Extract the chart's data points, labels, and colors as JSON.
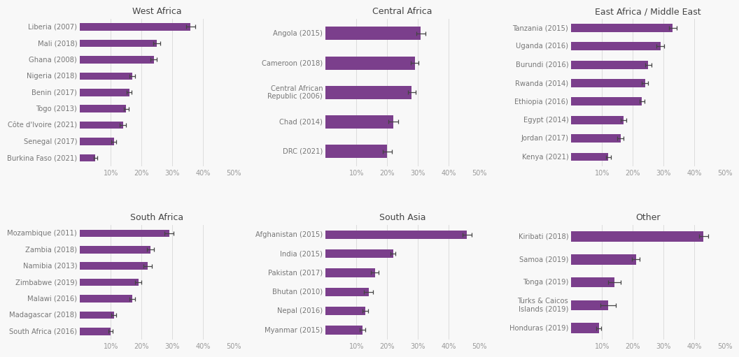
{
  "panels": [
    {
      "title": "West Africa",
      "xlim": [
        0,
        50
      ],
      "xticks": [
        0,
        10,
        20,
        30,
        40,
        50
      ],
      "xticklabels": [
        "",
        "10%",
        "20%",
        "30%",
        "40%",
        "50%"
      ],
      "countries": [
        {
          "label": "Liberia (2007)",
          "value": 36,
          "err": 1.5
        },
        {
          "label": "Mali (2018)",
          "value": 25,
          "err": 1.2
        },
        {
          "label": "Ghana (2008)",
          "value": 24,
          "err": 1.0
        },
        {
          "label": "Nigeria (2018)",
          "value": 17,
          "err": 0.9
        },
        {
          "label": "Benin (2017)",
          "value": 16,
          "err": 0.8
        },
        {
          "label": "Togo (2013)",
          "value": 15,
          "err": 0.8
        },
        {
          "label": "Côte d'Ivoire (2021)",
          "value": 14,
          "err": 1.0
        },
        {
          "label": "Senegal (2017)",
          "value": 11,
          "err": 0.7
        },
        {
          "label": "Burkina Faso (2021)",
          "value": 5,
          "err": 0.6
        }
      ]
    },
    {
      "title": "Central Africa",
      "xlim": [
        0,
        50
      ],
      "xticks": [
        0,
        10,
        20,
        30,
        40,
        50
      ],
      "xticklabels": [
        "",
        "10%",
        "20%",
        "30%",
        "40%",
        "50%"
      ],
      "countries": [
        {
          "label": "Angola (2015)",
          "value": 31,
          "err": 1.5
        },
        {
          "label": "Cameroon (2018)",
          "value": 29,
          "err": 1.3
        },
        {
          "label": "Central African\nRepublic (2006)",
          "value": 28,
          "err": 1.2
        },
        {
          "label": "Chad (2014)",
          "value": 22,
          "err": 1.5
        },
        {
          "label": "DRC (2021)",
          "value": 20,
          "err": 1.5
        }
      ]
    },
    {
      "title": "East Africa / Middle East",
      "xlim": [
        0,
        50
      ],
      "xticks": [
        0,
        10,
        20,
        30,
        40,
        50
      ],
      "xticklabels": [
        "",
        "10%",
        "20%",
        "30%",
        "40%",
        "50%"
      ],
      "countries": [
        {
          "label": "Tanzania (2015)",
          "value": 33,
          "err": 1.2
        },
        {
          "label": "Uganda (2016)",
          "value": 29,
          "err": 1.2
        },
        {
          "label": "Burundi (2016)",
          "value": 25,
          "err": 1.0
        },
        {
          "label": "Rwanda (2014)",
          "value": 24,
          "err": 1.0
        },
        {
          "label": "Ethiopia (2016)",
          "value": 23,
          "err": 0.8
        },
        {
          "label": "Egypt (2014)",
          "value": 17,
          "err": 1.0
        },
        {
          "label": "Jordan (2017)",
          "value": 16,
          "err": 1.0
        },
        {
          "label": "Kenya (2021)",
          "value": 12,
          "err": 0.8
        }
      ]
    },
    {
      "title": "South Africa",
      "xlim": [
        0,
        50
      ],
      "xticks": [
        0,
        10,
        20,
        30,
        40,
        50
      ],
      "xticklabels": [
        "",
        "10%",
        "20%",
        "30%",
        "40%",
        "50%"
      ],
      "countries": [
        {
          "label": "Mozambique (2011)",
          "value": 29,
          "err": 1.5
        },
        {
          "label": "Zambia (2018)",
          "value": 23,
          "err": 1.2
        },
        {
          "label": "Namibia (2013)",
          "value": 22,
          "err": 1.3
        },
        {
          "label": "Zimbabwe (2019)",
          "value": 19,
          "err": 1.0
        },
        {
          "label": "Malawi (2016)",
          "value": 17,
          "err": 0.9
        },
        {
          "label": "Madagascar (2018)",
          "value": 11,
          "err": 0.8
        },
        {
          "label": "South Africa (2016)",
          "value": 10,
          "err": 0.7
        }
      ]
    },
    {
      "title": "South Asia",
      "xlim": [
        0,
        50
      ],
      "xticks": [
        0,
        10,
        20,
        30,
        40,
        50
      ],
      "xticklabels": [
        "",
        "10%",
        "20%",
        "30%",
        "40%",
        "50%"
      ],
      "countries": [
        {
          "label": "Afghanistan (2015)",
          "value": 46,
          "err": 1.5
        },
        {
          "label": "India (2015)",
          "value": 22,
          "err": 0.8
        },
        {
          "label": "Pakistan (2017)",
          "value": 16,
          "err": 1.2
        },
        {
          "label": "Bhutan (2010)",
          "value": 14,
          "err": 1.5
        },
        {
          "label": "Nepal (2016)",
          "value": 13,
          "err": 0.9
        },
        {
          "label": "Myanmar (2015)",
          "value": 12,
          "err": 1.0
        }
      ]
    },
    {
      "title": "Other",
      "xlim": [
        0,
        50
      ],
      "xticks": [
        0,
        10,
        20,
        30,
        40,
        50
      ],
      "xticklabels": [
        "",
        "10%",
        "20%",
        "30%",
        "40%",
        "50%"
      ],
      "countries": [
        {
          "label": "Kiribati (2018)",
          "value": 43,
          "err": 1.5
        },
        {
          "label": "Samoa (2019)",
          "value": 21,
          "err": 1.2
        },
        {
          "label": "Tonga (2019)",
          "value": 14,
          "err": 2.0
        },
        {
          "label": "Turks & Caicos\nIslands (2019)",
          "value": 12,
          "err": 2.5
        },
        {
          "label": "Honduras (2019)",
          "value": 9,
          "err": 0.8
        }
      ]
    }
  ],
  "bar_color": "#7b3f8c",
  "error_color": "#444444",
  "title_fontsize": 9,
  "label_fontsize": 7.2,
  "tick_fontsize": 7,
  "background_color": "#f8f8f8",
  "panel_bg": "#f8f8f8",
  "gridline_color": "#dddddd",
  "label_color": "#777777",
  "tick_color": "#999999"
}
